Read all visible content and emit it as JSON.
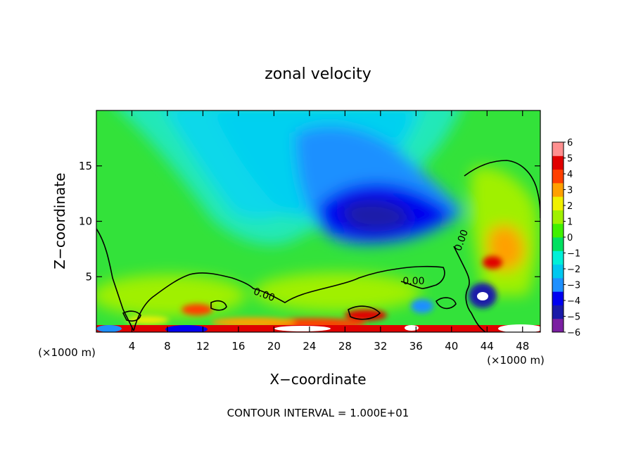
{
  "chart_data": {
    "type": "heatmap",
    "title": "zonal velocity",
    "xlabel": "X−coordinate",
    "ylabel": "Z−coordinate",
    "x_unit": "(×1000 m)",
    "x_unit_right": "(×1000 m)",
    "footer": "CONTOUR INTERVAL = 1.000E+01",
    "xlim": [
      0,
      50
    ],
    "ylim": [
      0,
      20
    ],
    "x_ticks": [
      4,
      8,
      12,
      16,
      20,
      24,
      28,
      32,
      36,
      40,
      44,
      48
    ],
    "y_ticks": [
      5,
      10,
      15
    ],
    "colorbar": {
      "levels": [
        -6,
        -5,
        -4,
        -3,
        -2,
        -1,
        0,
        1,
        2,
        3,
        4,
        5,
        6
      ],
      "labels": [
        "6",
        "5",
        "4",
        "3",
        "2",
        "1",
        "0",
        "−1",
        "−2",
        "−3",
        "−4",
        "−5",
        "−6"
      ],
      "colors": [
        "#7b1fa2",
        "#1a1aa8",
        "#0000f0",
        "#1e90ff",
        "#00c8f0",
        "#00f0d8",
        "#00e060",
        "#40f000",
        "#a0f000",
        "#f0f000",
        "#ffa000",
        "#ff4000",
        "#e00000",
        "#ff9090"
      ]
    },
    "contour_labels": [
      "0.00",
      "0.00",
      "0.00"
    ],
    "grid": false
  }
}
